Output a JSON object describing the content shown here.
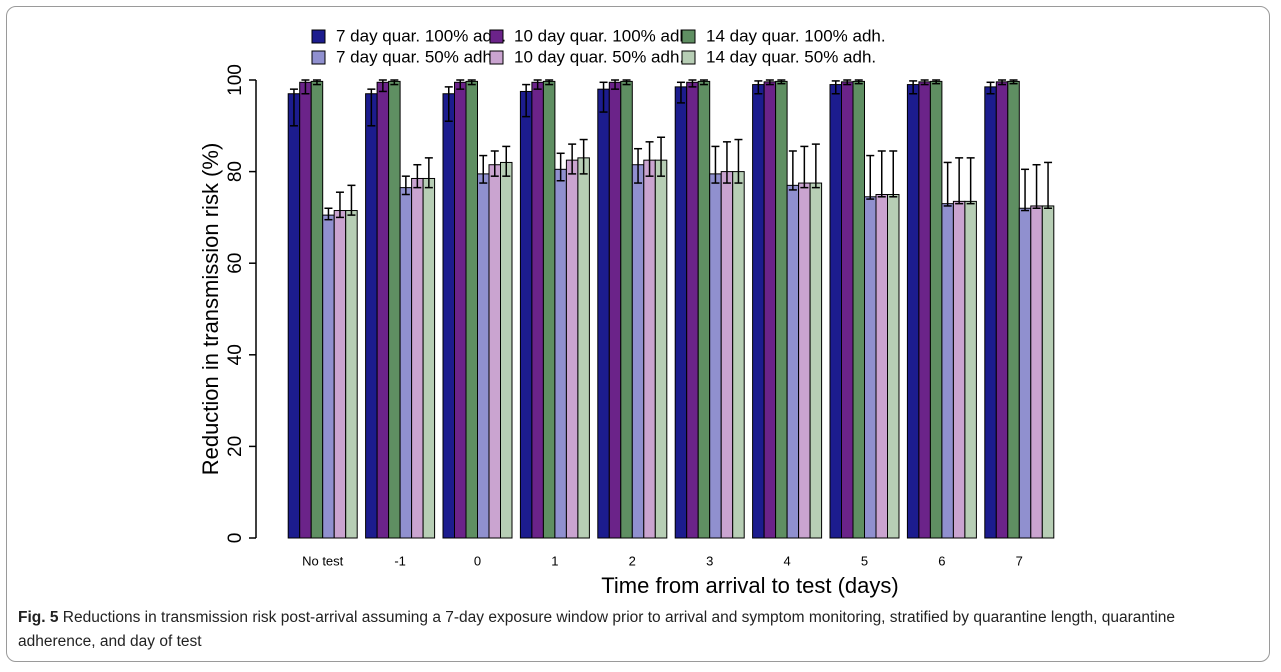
{
  "chart_data": {
    "type": "bar",
    "y_label": "Reduction in transmission risk (%)",
    "x_label": "Time from arrival to test (days)",
    "categories": [
      "No test",
      "-1",
      "0",
      "1",
      "2",
      "3",
      "4",
      "5",
      "6",
      "7"
    ],
    "ylim": [
      0,
      100
    ],
    "yticks": [
      0,
      20,
      40,
      60,
      80,
      100
    ],
    "series": [
      {
        "name": "7 day quar. 100% adh.",
        "color": "#1c1c8e",
        "values": [
          97,
          97,
          97,
          97.5,
          98,
          98.5,
          99,
          99,
          99,
          98.5
        ],
        "lower": [
          90,
          90,
          91,
          92,
          93,
          95,
          97,
          97,
          97,
          97
        ],
        "upper": [
          98,
          98,
          98.5,
          99,
          99.5,
          99.5,
          99.8,
          99.8,
          99.8,
          99.5
        ]
      },
      {
        "name": "10 day quar. 100% adh.",
        "color": "#6b2389",
        "values": [
          99.5,
          99.5,
          99.5,
          99.5,
          99.5,
          99.5,
          99.6,
          99.6,
          99.6,
          99.6
        ],
        "lower": [
          97,
          97.5,
          98,
          98,
          98,
          98.5,
          99,
          99,
          99,
          99
        ],
        "upper": [
          100,
          100,
          100,
          100,
          100,
          100,
          100,
          100,
          100,
          100
        ]
      },
      {
        "name": "14 day quar. 100% adh.",
        "color": "#5f8f62",
        "values": [
          99.7,
          99.7,
          99.7,
          99.7,
          99.7,
          99.7,
          99.7,
          99.7,
          99.7,
          99.7
        ],
        "lower": [
          99,
          99,
          99,
          99,
          99,
          99,
          99.2,
          99.2,
          99.2,
          99.2
        ],
        "upper": [
          100,
          100,
          100,
          100,
          100,
          100,
          100,
          100,
          100,
          100
        ]
      },
      {
        "name": "7 day quar. 50% adh.",
        "color": "#9090cf",
        "values": [
          70.5,
          76.5,
          79.5,
          80.5,
          81.5,
          79.5,
          77,
          74.5,
          73,
          72
        ],
        "lower": [
          69.5,
          75,
          77.5,
          78,
          77.5,
          77.5,
          76,
          74,
          72.5,
          71.5
        ],
        "upper": [
          72,
          79,
          83.5,
          84,
          85,
          85.5,
          84.5,
          83.5,
          82,
          80.5
        ]
      },
      {
        "name": "10 day quar. 50% adh.",
        "color": "#caa4d0",
        "values": [
          71.5,
          78.5,
          81.5,
          82.5,
          82.5,
          80,
          77.5,
          75,
          73.5,
          72.5
        ],
        "lower": [
          70,
          76.5,
          79,
          79.5,
          79,
          77.5,
          76.5,
          74.5,
          73,
          72
        ],
        "upper": [
          75.5,
          81.5,
          84.5,
          86,
          86.5,
          86.5,
          85.5,
          84.5,
          83,
          81.5
        ]
      },
      {
        "name": "14 day quar. 50% adh.",
        "color": "#b7ceb5",
        "values": [
          71.5,
          78.5,
          82,
          83,
          82.5,
          80,
          77.5,
          75,
          73.5,
          72.5
        ],
        "lower": [
          70.5,
          76.5,
          79,
          79.5,
          79,
          77.5,
          76.5,
          74.5,
          73,
          72
        ],
        "upper": [
          77,
          83,
          85.5,
          87,
          87.5,
          87,
          86,
          84.5,
          83,
          82
        ]
      }
    ]
  },
  "caption": {
    "label": "Fig. 5",
    "text": "Reductions in transmission risk post-arrival assuming a 7-day exposure window prior to arrival and symptom monitoring, stratified by quarantine length, quarantine adherence, and day of test"
  }
}
